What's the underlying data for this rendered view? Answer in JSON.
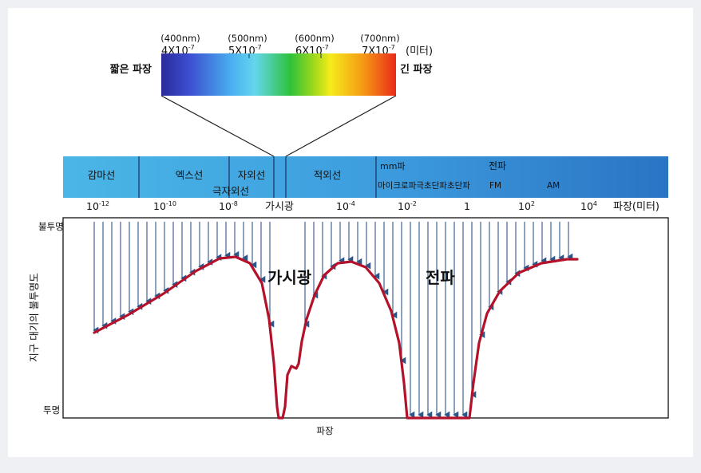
{
  "spectrum": {
    "wavelengths": [
      {
        "nm": "(400nm)",
        "sci_base": "4X10",
        "exp": "-7"
      },
      {
        "nm": "(500nm)",
        "sci_base": "5X10",
        "exp": "-7"
      },
      {
        "nm": "(600nm)",
        "sci_base": "6X10",
        "exp": "-7"
      },
      {
        "nm": "(700nm)",
        "sci_base": "7X10",
        "exp": "-7"
      }
    ],
    "unit_label": "(미터)",
    "short_label": "짧은 파장",
    "long_label": "긴 파장",
    "colors": [
      "#2b2a9a",
      "#3b4fd0",
      "#4ab0f0",
      "#63d6ec",
      "#2ec23a",
      "#9fd81c",
      "#f5ec1a",
      "#f59a14",
      "#ea2a1a"
    ]
  },
  "band": {
    "segments": {
      "gamma": "감마선",
      "xray": "엑스선",
      "uv": "자외선",
      "extreme_uv": "극자외선",
      "ir": "적외선",
      "mm": "mm파",
      "radio": "전파",
      "radio_sub": "마이크로파극초단파초단파",
      "fm": "FM",
      "am": "AM"
    },
    "visible_label": "가시광",
    "colors": {
      "light": "#4ab6e6",
      "dark": "#2f86cf",
      "divider": "#1c3a6a"
    }
  },
  "axis": {
    "ticks": [
      {
        "base": "10",
        "exp": "-12"
      },
      {
        "base": "10",
        "exp": "-10"
      },
      {
        "base": "10",
        "exp": "-8"
      },
      {
        "base": "10",
        "exp": "-4"
      },
      {
        "base": "10",
        "exp": "-2"
      },
      {
        "base": "1",
        "exp": ""
      },
      {
        "base": "10",
        "exp": "2"
      },
      {
        "base": "10",
        "exp": "4"
      }
    ],
    "unit_label": "파장(미터)"
  },
  "plot": {
    "y_top_label": "불투명",
    "y_bottom_label": "투명",
    "y_title": "지구 대기의 불투명도",
    "x_title": "파장",
    "visible_label": "가시광",
    "radio_label": "전파",
    "curve_color": "#b3122a",
    "arrow_color": "#2d5688"
  }
}
